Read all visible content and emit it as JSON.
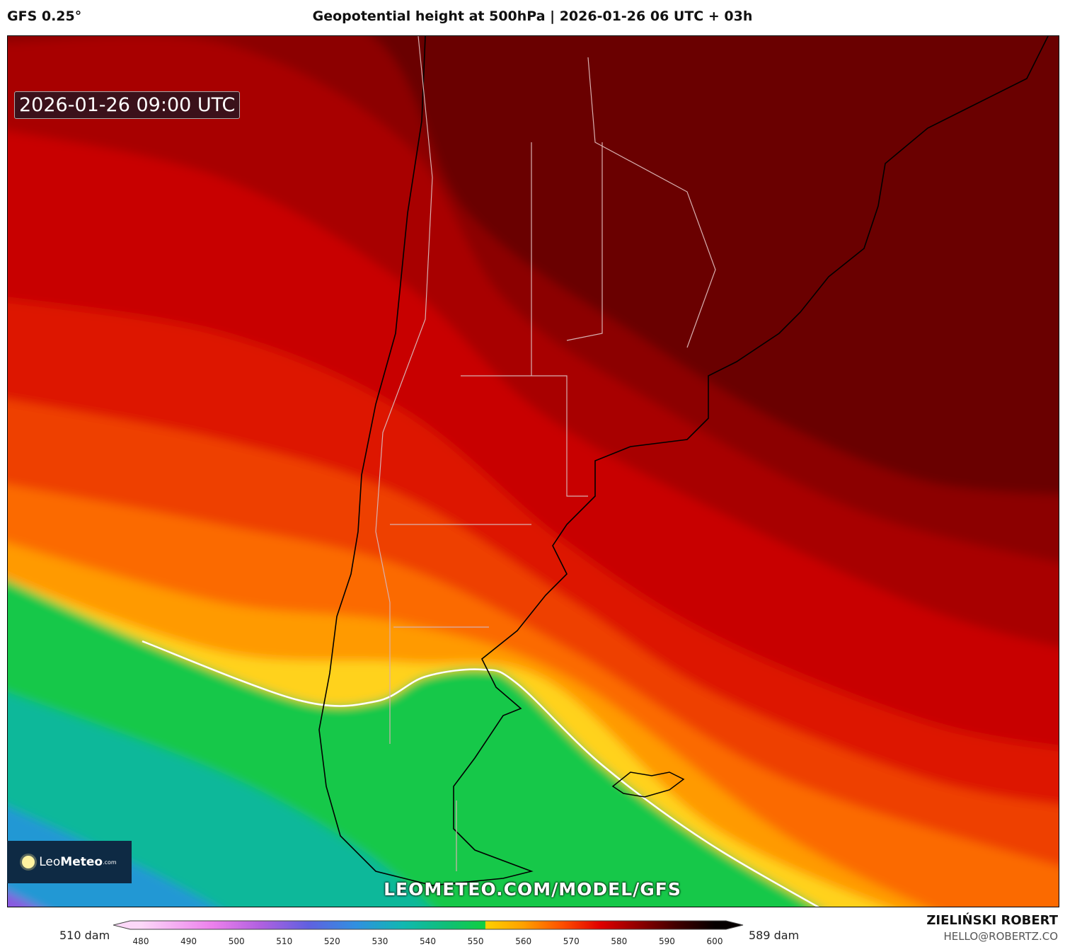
{
  "header": {
    "model": "GFS 0.25°",
    "title": "Geopotential height at 500hPa | 2026-01-26 06 UTC + 03h"
  },
  "map": {
    "valid_time": "2026-01-26 09:00 UTC",
    "watermark": "LEOMETEO.COM/MODEL/GFS"
  },
  "logo": {
    "name_light": "Leo",
    "name_bold": "Meteo",
    "suffix": ".com"
  },
  "colorbar": {
    "min_label": "510 dam",
    "max_label": "589 dam",
    "ticks": [
      "480",
      "490",
      "500",
      "510",
      "520",
      "530",
      "540",
      "550",
      "560",
      "570",
      "580",
      "590",
      "600"
    ],
    "stops": [
      {
        "value": 480,
        "color": "#fcd8f8"
      },
      {
        "value": 495,
        "color": "#ec80ec"
      },
      {
        "value": 505,
        "color": "#b060e0"
      },
      {
        "value": 515,
        "color": "#6060e0"
      },
      {
        "value": 525,
        "color": "#3090e0"
      },
      {
        "value": 535,
        "color": "#10b8b0"
      },
      {
        "value": 545,
        "color": "#10c070"
      },
      {
        "value": 552,
        "color": "#10d040"
      },
      {
        "value": 552.1,
        "color": "#ffd000"
      },
      {
        "value": 560,
        "color": "#ffa000"
      },
      {
        "value": 568,
        "color": "#ff5000"
      },
      {
        "value": 576,
        "color": "#e00000"
      },
      {
        "value": 584,
        "color": "#900000"
      },
      {
        "value": 592,
        "color": "#400000"
      },
      {
        "value": 600,
        "color": "#050000"
      }
    ]
  },
  "footer": {
    "author": "ZIELIŃSKI ROBERT",
    "email": "HELLO@ROBERTZ.CO"
  }
}
